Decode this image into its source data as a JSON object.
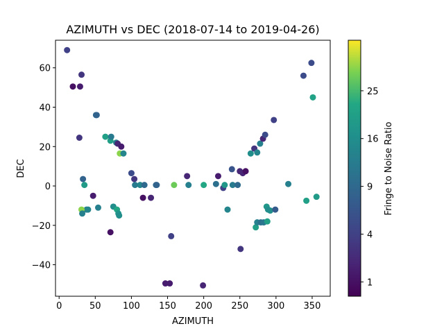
{
  "chart_data": {
    "type": "scatter",
    "title": "AZIMUTH vs DEC (2018-07-14 to 2019-04-26)",
    "xlabel": "AZIMUTH",
    "ylabel": "DEC",
    "xlim": [
      -5,
      375
    ],
    "ylim": [
      -56,
      74
    ],
    "xticks": [
      0,
      50,
      100,
      150,
      200,
      250,
      300,
      350
    ],
    "yticks": [
      -40,
      -20,
      0,
      20,
      40,
      60
    ],
    "grid": false,
    "colorbar": {
      "label": "Fringe to Noise Ratio",
      "colormap": "viridis",
      "scale": "sqrt",
      "range": [
        0.49,
        36.7
      ],
      "ticks": [
        1,
        4,
        9,
        16,
        25
      ]
    },
    "points": [
      {
        "x": 11,
        "y": 69,
        "c": 4
      },
      {
        "x": 19,
        "y": 50.5,
        "c": 1
      },
      {
        "x": 29,
        "y": 50.5,
        "c": 1.5
      },
      {
        "x": 31,
        "y": 56.5,
        "c": 3
      },
      {
        "x": 28,
        "y": 24.5,
        "c": 3
      },
      {
        "x": 33,
        "y": 3.5,
        "c": 8
      },
      {
        "x": 35,
        "y": 0.5,
        "c": 19
      },
      {
        "x": 38,
        "y": -12,
        "c": 13
      },
      {
        "x": 40,
        "y": -12,
        "c": 14
      },
      {
        "x": 31,
        "y": -12,
        "c": 30
      },
      {
        "x": 32,
        "y": -14,
        "c": 13
      },
      {
        "x": 47,
        "y": -5,
        "c": 1.5
      },
      {
        "x": 51,
        "y": 36,
        "c": 9
      },
      {
        "x": 52,
        "y": 36,
        "c": 8
      },
      {
        "x": 54,
        "y": -11,
        "c": 13
      },
      {
        "x": 64,
        "y": 25,
        "c": 20
      },
      {
        "x": 71,
        "y": 23,
        "c": 20
      },
      {
        "x": 72,
        "y": 25,
        "c": 12
      },
      {
        "x": 71,
        "y": -23.5,
        "c": 1
      },
      {
        "x": 75,
        "y": -10.5,
        "c": 16
      },
      {
        "x": 80,
        "y": -12,
        "c": 22
      },
      {
        "x": 82,
        "y": -14,
        "c": 17
      },
      {
        "x": 83,
        "y": -15,
        "c": 16
      },
      {
        "x": 79,
        "y": 22,
        "c": 13
      },
      {
        "x": 81,
        "y": 21.5,
        "c": 2
      },
      {
        "x": 84,
        "y": 16.5,
        "c": 30
      },
      {
        "x": 86,
        "y": 20,
        "c": 1.5
      },
      {
        "x": 89,
        "y": 16.5,
        "c": 14
      },
      {
        "x": 100,
        "y": 6.5,
        "c": 5
      },
      {
        "x": 104,
        "y": 3.5,
        "c": 3
      },
      {
        "x": 105,
        "y": 0.5,
        "c": 12
      },
      {
        "x": 112,
        "y": 0.5,
        "c": 14
      },
      {
        "x": 116,
        "y": -6,
        "c": 1
      },
      {
        "x": 118,
        "y": 0.5,
        "c": 9
      },
      {
        "x": 127,
        "y": -6,
        "c": 2
      },
      {
        "x": 134,
        "y": 0.5,
        "c": 9
      },
      {
        "x": 135,
        "y": 0.5,
        "c": 8
      },
      {
        "x": 147,
        "y": -49.5,
        "c": 1.5
      },
      {
        "x": 153,
        "y": -49.5,
        "c": 1.5
      },
      {
        "x": 155,
        "y": -25.5,
        "c": 4
      },
      {
        "x": 159,
        "y": 0.5,
        "c": 28
      },
      {
        "x": 177,
        "y": 5,
        "c": 2
      },
      {
        "x": 179,
        "y": 0.5,
        "c": 13
      },
      {
        "x": 199,
        "y": -50.5,
        "c": 2
      },
      {
        "x": 200,
        "y": 0.5,
        "c": 22
      },
      {
        "x": 217,
        "y": 1,
        "c": 10
      },
      {
        "x": 220,
        "y": 5,
        "c": 1.5
      },
      {
        "x": 227,
        "y": -1,
        "c": 4
      },
      {
        "x": 229,
        "y": 0.5,
        "c": 18
      },
      {
        "x": 233,
        "y": -12,
        "c": 14
      },
      {
        "x": 239,
        "y": 8.5,
        "c": 6
      },
      {
        "x": 240,
        "y": 0.5,
        "c": 12
      },
      {
        "x": 247,
        "y": 0.5,
        "c": 9
      },
      {
        "x": 250,
        "y": 7.5,
        "c": 2
      },
      {
        "x": 251,
        "y": -32,
        "c": 3
      },
      {
        "x": 254,
        "y": 6.5,
        "c": 2
      },
      {
        "x": 258,
        "y": 7.5,
        "c": 1
      },
      {
        "x": 265,
        "y": 16.5,
        "c": 16
      },
      {
        "x": 270,
        "y": 19,
        "c": 3
      },
      {
        "x": 272,
        "y": -21,
        "c": 20
      },
      {
        "x": 274,
        "y": -18.5,
        "c": 13
      },
      {
        "x": 274,
        "y": 17,
        "c": 14
      },
      {
        "x": 278,
        "y": 21.5,
        "c": 13
      },
      {
        "x": 279,
        "y": -18.5,
        "c": 10
      },
      {
        "x": 282,
        "y": 24,
        "c": 2
      },
      {
        "x": 283,
        "y": -18.5,
        "c": 11
      },
      {
        "x": 285,
        "y": 26,
        "c": 5
      },
      {
        "x": 287,
        "y": -10.5,
        "c": 18
      },
      {
        "x": 288,
        "y": -18,
        "c": 20
      },
      {
        "x": 289,
        "y": -12,
        "c": 16
      },
      {
        "x": 292,
        "y": -12.5,
        "c": 16
      },
      {
        "x": 297,
        "y": 33.5,
        "c": 4
      },
      {
        "x": 299,
        "y": -12,
        "c": 7
      },
      {
        "x": 317,
        "y": 1,
        "c": 13
      },
      {
        "x": 338,
        "y": 56,
        "c": 5
      },
      {
        "x": 342,
        "y": -7.5,
        "c": 20
      },
      {
        "x": 349,
        "y": 62.5,
        "c": 5
      },
      {
        "x": 351,
        "y": 45,
        "c": 21
      },
      {
        "x": 356,
        "y": -5.5,
        "c": 19
      }
    ]
  }
}
